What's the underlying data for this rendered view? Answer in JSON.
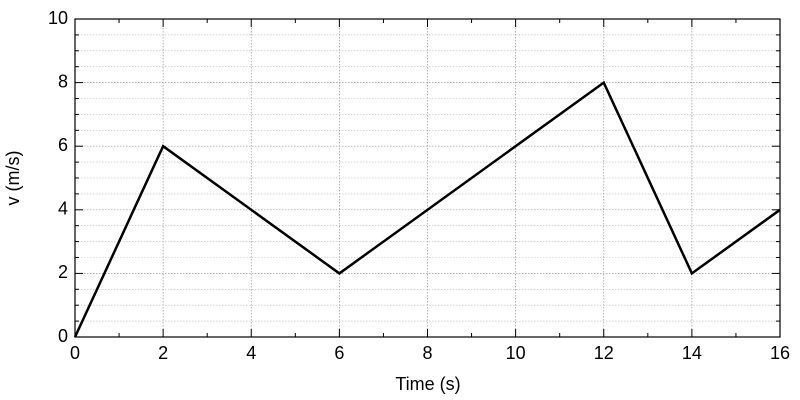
{
  "chart_data": {
    "type": "line",
    "xlabel": "Time (s)",
    "ylabel": "v (m/s)",
    "x": [
      0,
      2,
      6,
      12,
      14,
      16
    ],
    "series": [
      {
        "color": "#000000",
        "values": [
          0,
          6,
          2,
          8,
          2,
          4
        ]
      }
    ],
    "xlim": [
      0,
      16
    ],
    "ylim": [
      0,
      10
    ],
    "xticks": [
      0,
      2,
      4,
      6,
      8,
      10,
      12,
      14,
      16
    ],
    "yticks": [
      0,
      2,
      4,
      6,
      8,
      10
    ],
    "grid": true,
    "minor_grid": true
  }
}
